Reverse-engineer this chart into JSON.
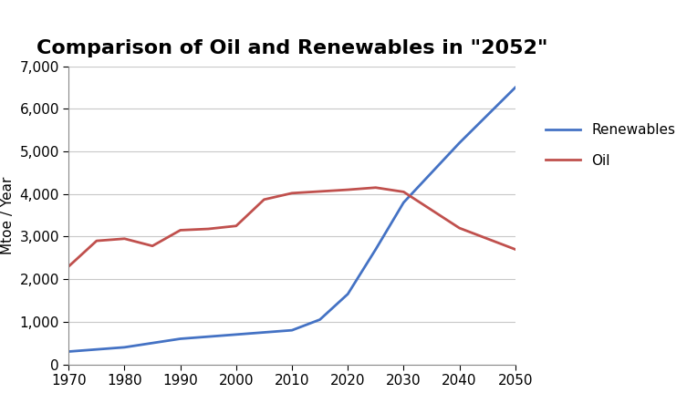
{
  "title": "Comparison of Oil and Renewables in \"2052\"",
  "xlabel": "",
  "ylabel": "Mtoe / Year",
  "xlim": [
    1970,
    2050
  ],
  "ylim": [
    0,
    7000
  ],
  "yticks": [
    0,
    1000,
    2000,
    3000,
    4000,
    5000,
    6000,
    7000
  ],
  "xticks": [
    1970,
    1980,
    1990,
    2000,
    2010,
    2020,
    2030,
    2040,
    2050
  ],
  "renewables_x": [
    1970,
    1980,
    1990,
    2000,
    2010,
    2015,
    2020,
    2025,
    2030,
    2040,
    2050
  ],
  "renewables_y": [
    300,
    400,
    600,
    700,
    800,
    1050,
    1650,
    2700,
    3800,
    5200,
    6500
  ],
  "oil_x": [
    1970,
    1975,
    1980,
    1985,
    1990,
    1995,
    2000,
    2005,
    2010,
    2015,
    2020,
    2025,
    2030,
    2040,
    2050
  ],
  "oil_y": [
    2300,
    2900,
    2950,
    2780,
    3150,
    3180,
    3250,
    3870,
    4020,
    4060,
    4100,
    4150,
    4050,
    3200,
    2700
  ],
  "renewables_color": "#4472c4",
  "oil_color": "#c0504d",
  "background_color": "#ffffff",
  "legend_renewables": "Renewables",
  "legend_oil": "Oil",
  "title_fontsize": 16,
  "axis_label_fontsize": 11,
  "tick_fontsize": 11,
  "legend_fontsize": 11,
  "line_width": 2.0,
  "grid_color": "#c8c8c8"
}
